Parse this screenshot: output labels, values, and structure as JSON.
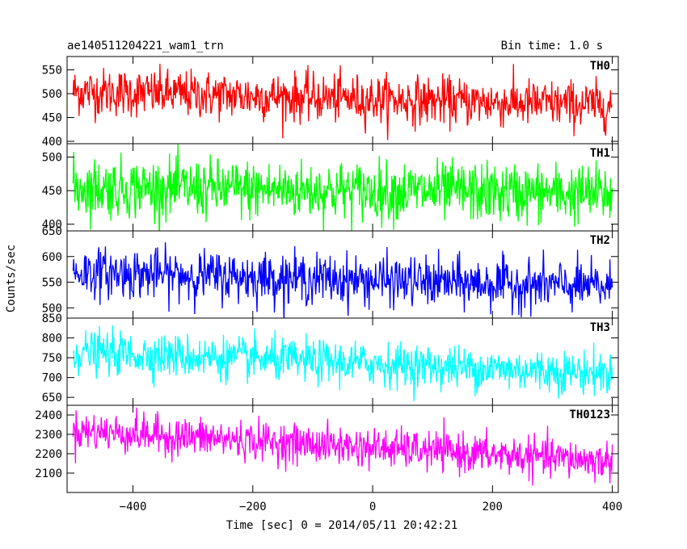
{
  "chart_data": {
    "type": "line",
    "title": "ae140511204221_wam1_trn",
    "subtitle": "Bin time: 1.0 s",
    "xlabel": "Time [sec] 0 = 2014/05/11 20:42:21",
    "ylabel": "Counts/sec",
    "xlim": [
      -510,
      410
    ],
    "x_ticks": [
      -400,
      -200,
      0,
      200,
      400
    ],
    "x_tick_labels": [
      "−400",
      "−200",
      "0",
      "200",
      "400"
    ],
    "x_range": [
      -500,
      400
    ],
    "bin_time": 1.0,
    "panels": [
      {
        "name": "TH0",
        "color": "#ff0000",
        "ylim": [
          395,
          578
        ],
        "y_ticks": [
          400,
          450,
          500,
          550
        ],
        "y_tick_labels": [
          "400",
          "450",
          "500",
          "550"
        ],
        "trend": {
          "start": 505,
          "end": 475
        },
        "noise_sigma": 25
      },
      {
        "name": "TH1",
        "color": "#00ff00",
        "ylim": [
          390,
          520
        ],
        "y_ticks": [
          400,
          450,
          500
        ],
        "y_tick_labels": [
          "400",
          "450",
          "500"
        ],
        "trend": {
          "start": 455,
          "end": 445
        },
        "noise_sigma": 22
      },
      {
        "name": "TH2",
        "color": "#0000ff",
        "ylim": [
          480,
          650
        ],
        "y_ticks": [
          500,
          550,
          600,
          650
        ],
        "y_tick_labels": [
          "500",
          "550",
          "600",
          "650"
        ],
        "trend": {
          "start": 570,
          "end": 540
        },
        "noise_sigma": 24
      },
      {
        "name": "TH3",
        "color": "#00ffff",
        "ylim": [
          630,
          850
        ],
        "y_ticks": [
          650,
          700,
          750,
          800,
          850
        ],
        "y_tick_labels": [
          "650",
          "700",
          "750",
          "800",
          "850"
        ],
        "trend": {
          "start": 765,
          "end": 710
        },
        "noise_sigma": 27
      },
      {
        "name": "TH0123",
        "color": "#ff00ff",
        "ylim": [
          2000,
          2450
        ],
        "y_ticks": [
          2100,
          2200,
          2300,
          2400
        ],
        "y_tick_labels": [
          "2100",
          "2200",
          "2300",
          "2400"
        ],
        "trend": {
          "start": 2320,
          "end": 2160
        },
        "noise_sigma": 50
      }
    ],
    "grid": false,
    "legend": "none"
  }
}
